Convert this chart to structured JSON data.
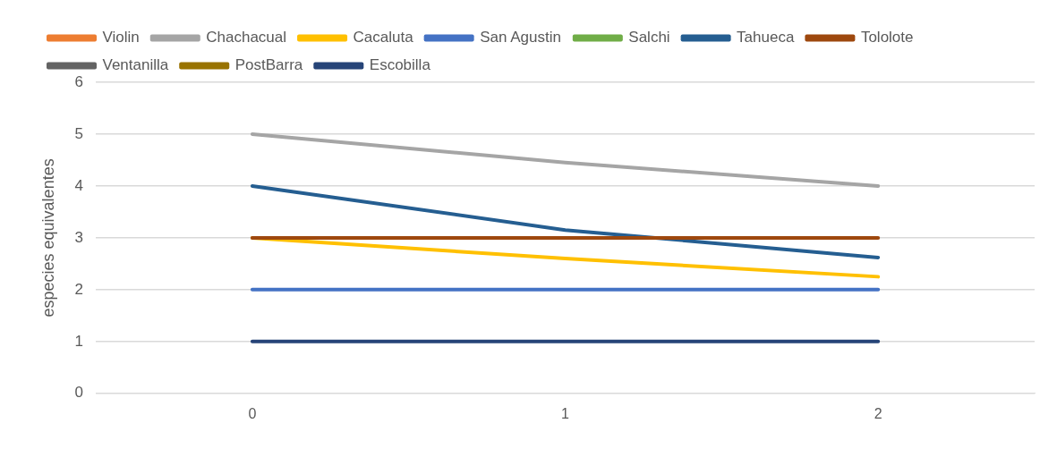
{
  "chart_data": {
    "type": "line",
    "ylabel": "especies equivalentes",
    "categories": [
      "0",
      "1",
      "2"
    ],
    "ylim": [
      0,
      6
    ],
    "yticks": [
      0,
      1,
      2,
      3,
      4,
      5,
      6
    ],
    "grid": "y",
    "legend": "top",
    "marker": "none",
    "line_style": "solid",
    "series": [
      {
        "name": "Violin",
        "color": "#ed7d31",
        "values": [
          null,
          null,
          null
        ]
      },
      {
        "name": "Chachacual",
        "color": "#a5a5a5",
        "values": [
          5,
          4.45,
          4
        ]
      },
      {
        "name": "Cacaluta",
        "color": "#ffc000",
        "values": [
          3,
          2.6,
          2.25
        ]
      },
      {
        "name": "San Agustin",
        "color": "#4472c4",
        "values": [
          2,
          2,
          2
        ]
      },
      {
        "name": "Salchi",
        "color": "#70ad47",
        "values": [
          null,
          null,
          null
        ]
      },
      {
        "name": "Tahueca",
        "color": "#255e91",
        "values": [
          4,
          3.15,
          2.62
        ]
      },
      {
        "name": "Tololote",
        "color": "#9e480e",
        "values": [
          3,
          3,
          3
        ]
      },
      {
        "name": "Ventanilla",
        "color": "#636363",
        "values": [
          null,
          null,
          null
        ]
      },
      {
        "name": "PostBarra",
        "color": "#997300",
        "values": [
          null,
          null,
          null
        ]
      },
      {
        "name": "Escobilla",
        "color": "#264478",
        "values": [
          1,
          1,
          1
        ]
      }
    ]
  }
}
